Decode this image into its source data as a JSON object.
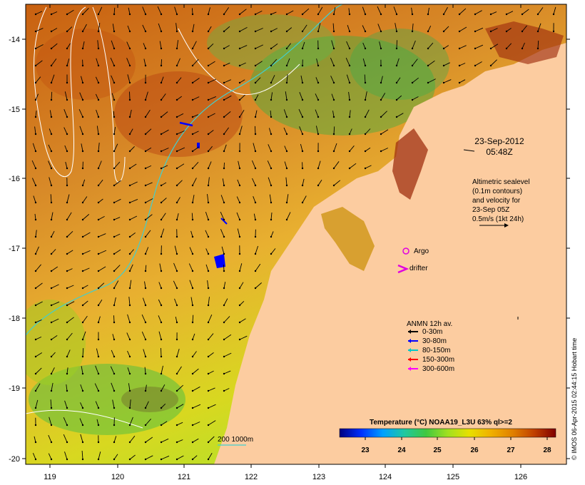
{
  "map": {
    "date": "23-Sep-2012",
    "time": "05:48Z",
    "x_ticks": [
      "119",
      "120",
      "121",
      "122",
      "123",
      "124",
      "125",
      "126"
    ],
    "y_ticks": [
      "-14",
      "-15",
      "-16",
      "-17",
      "-18",
      "-19",
      "-20"
    ],
    "altimetry_note": [
      "Altimetric sealevel",
      "(0.1m contours)",
      "and velocity for",
      "23-Sep 05Z",
      "0.5m/s (1kt 24h)"
    ],
    "argo_label": "Argo",
    "drifter_label": "drifter",
    "anmn": {
      "title": "ANMN 12h av.",
      "items": [
        {
          "label": "0-30m",
          "color": "#000000"
        },
        {
          "label": "30-80m",
          "color": "#0000ff"
        },
        {
          "label": "80-150m",
          "color": "#00c8c8"
        },
        {
          "label": "150-300m",
          "color": "#ff0000"
        },
        {
          "label": "300-600m",
          "color": "#ff00ff"
        }
      ]
    },
    "bathy_legend": "200  1000m",
    "colorbar": {
      "title": "Temperature (°C) NOAA19_L3U 63% ql>=2",
      "ticks": [
        "23",
        "24",
        "25",
        "26",
        "27",
        "28"
      ],
      "colors": [
        "#000080",
        "#0040ff",
        "#00a0ff",
        "#20c8a0",
        "#40c840",
        "#a0e020",
        "#e8e000",
        "#f0b000",
        "#e08000",
        "#c85000",
        "#a01800",
        "#800000"
      ]
    },
    "credit": "© IMOS 06-Apr-2015 02:44:15 Hobart time",
    "colors": {
      "land": "#fccca0",
      "sea_base": "#e8a040"
    }
  }
}
